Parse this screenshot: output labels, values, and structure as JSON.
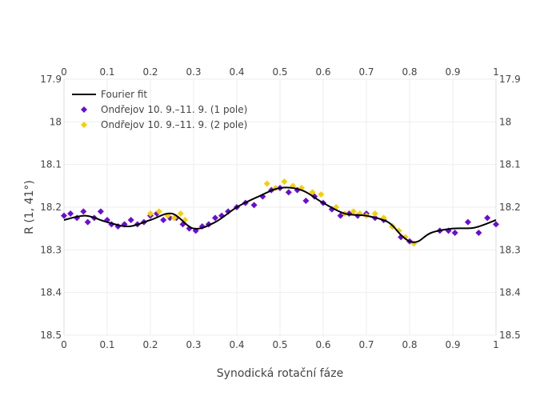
{
  "chart_data": {
    "type": "scatter",
    "xlabel": "Synodická rotační fáze",
    "ylabel": "R (1, 41°)",
    "xlim": [
      0,
      1
    ],
    "ylim": [
      18.5,
      17.9
    ],
    "y_reversed": true,
    "x_ticks": [
      "0",
      "0.1",
      "0.2",
      "0.3",
      "0.4",
      "0.5",
      "0.6",
      "0.7",
      "0.8",
      "0.9",
      "1"
    ],
    "y_ticks": [
      "17.9",
      "18",
      "18.1",
      "18.2",
      "18.3",
      "18.4",
      "18.5"
    ],
    "legend_position": "top-left",
    "series": [
      {
        "name": "Fourier fit",
        "kind": "line",
        "color": "#000000",
        "x": [
          0.0,
          0.05,
          0.1,
          0.15,
          0.2,
          0.25,
          0.3,
          0.35,
          0.4,
          0.45,
          0.5,
          0.55,
          0.6,
          0.65,
          0.7,
          0.75,
          0.78,
          0.8,
          0.82,
          0.85,
          0.9,
          0.95,
          1.0
        ],
        "y": [
          18.23,
          18.22,
          18.235,
          18.245,
          18.23,
          18.215,
          18.25,
          18.235,
          18.2,
          18.175,
          18.155,
          18.16,
          18.19,
          18.215,
          18.22,
          18.235,
          18.265,
          18.28,
          18.28,
          18.26,
          18.25,
          18.248,
          18.23
        ]
      },
      {
        "name": "Ondřejov 10. 9.–11. 9. (1 pole)",
        "kind": "markers",
        "color": "#6a0dd6",
        "x": [
          0.0,
          0.015,
          0.03,
          0.045,
          0.055,
          0.07,
          0.085,
          0.1,
          0.11,
          0.125,
          0.14,
          0.155,
          0.17,
          0.185,
          0.2,
          0.215,
          0.23,
          0.245,
          0.26,
          0.275,
          0.29,
          0.305,
          0.32,
          0.335,
          0.35,
          0.365,
          0.38,
          0.4,
          0.42,
          0.44,
          0.46,
          0.48,
          0.5,
          0.52,
          0.54,
          0.56,
          0.58,
          0.6,
          0.62,
          0.64,
          0.66,
          0.68,
          0.7,
          0.72,
          0.74,
          0.76,
          0.78,
          0.8,
          0.87,
          0.89,
          0.905,
          0.935,
          0.96,
          0.98,
          1.0
        ],
        "y": [
          18.22,
          18.215,
          18.225,
          18.21,
          18.235,
          18.225,
          18.21,
          18.23,
          18.24,
          18.245,
          18.24,
          18.23,
          18.24,
          18.235,
          18.22,
          18.215,
          18.23,
          18.225,
          18.225,
          18.24,
          18.25,
          18.255,
          18.245,
          18.24,
          18.225,
          18.22,
          18.21,
          18.2,
          18.19,
          18.195,
          18.175,
          18.16,
          18.155,
          18.165,
          18.16,
          18.185,
          18.175,
          18.19,
          18.205,
          18.22,
          18.215,
          18.22,
          18.215,
          18.225,
          18.23,
          18.245,
          18.27,
          18.28,
          18.255,
          18.255,
          18.26,
          18.235,
          18.26,
          18.225,
          18.24
        ]
      },
      {
        "name": "Ondřejov 10. 9.–11. 9. (2 pole)",
        "kind": "markers",
        "color": "#f5d000",
        "x": [
          0.2,
          0.22,
          0.24,
          0.255,
          0.27,
          0.28,
          0.47,
          0.49,
          0.51,
          0.53,
          0.55,
          0.575,
          0.595,
          0.63,
          0.65,
          0.67,
          0.685,
          0.7,
          0.72,
          0.74,
          0.76,
          0.775,
          0.79,
          0.81
        ],
        "y": [
          18.215,
          18.21,
          18.22,
          18.225,
          18.215,
          18.23,
          18.145,
          18.155,
          18.14,
          18.15,
          18.155,
          18.165,
          18.17,
          18.2,
          18.215,
          18.21,
          18.215,
          18.22,
          18.215,
          18.225,
          18.245,
          18.255,
          18.27,
          18.285
        ]
      }
    ]
  }
}
